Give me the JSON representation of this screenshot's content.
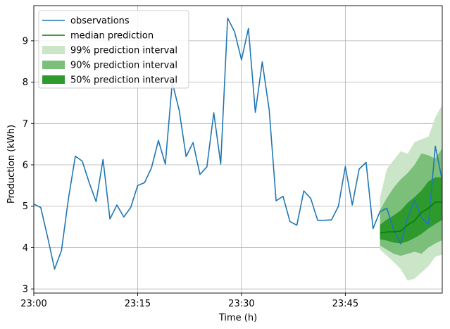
{
  "chart_data": {
    "type": "line",
    "xlabel": "Time (h)",
    "ylabel": "Production (kWh)",
    "x_unit": "minutes after 23:00",
    "xlim": [
      0,
      59
    ],
    "ylim": [
      2.9,
      9.85
    ],
    "x_ticks": [
      {
        "value": 0,
        "label": "23:00"
      },
      {
        "value": 15,
        "label": "23:15"
      },
      {
        "value": 30,
        "label": "23:30"
      },
      {
        "value": 45,
        "label": "23:45"
      }
    ],
    "y_ticks": [
      3,
      4,
      5,
      6,
      7,
      8,
      9
    ],
    "grid": true,
    "legend_position": "top-left",
    "colors": {
      "observations": "#1f77b4",
      "median": "#008000",
      "band99": "#cbe5c8",
      "band90": "#7bbf7a",
      "band50": "#2e9a2e"
    },
    "legend": [
      {
        "label": "observations",
        "kind": "line",
        "color_key": "observations"
      },
      {
        "label": "median prediction",
        "kind": "line",
        "color_key": "median"
      },
      {
        "label": "99% prediction interval",
        "kind": "patch",
        "color_key": "band99"
      },
      {
        "label": "90% prediction interval",
        "kind": "patch",
        "color_key": "band90"
      },
      {
        "label": "50% prediction interval",
        "kind": "patch",
        "color_key": "band50"
      }
    ],
    "observations": {
      "x": [
        0,
        1,
        2,
        3,
        4,
        5,
        6,
        7,
        8,
        9,
        10,
        11,
        12,
        13,
        14,
        15,
        16,
        17,
        18,
        19,
        20,
        21,
        22,
        23,
        24,
        25,
        26,
        27,
        28,
        29,
        30,
        31,
        32,
        33,
        34,
        35,
        36,
        37,
        38,
        39,
        40,
        41,
        42,
        43,
        44,
        45,
        46,
        47,
        48,
        49,
        50,
        51,
        52,
        53,
        54,
        55,
        56,
        57,
        58,
        59
      ],
      "y": [
        5.05,
        4.97,
        4.25,
        3.48,
        3.93,
        5.18,
        6.21,
        6.09,
        5.57,
        5.11,
        6.13,
        4.69,
        5.03,
        4.74,
        4.97,
        5.5,
        5.57,
        5.93,
        6.59,
        6.02,
        8.0,
        7.32,
        6.2,
        6.54,
        5.77,
        5.95,
        7.26,
        6.02,
        9.55,
        9.22,
        8.54,
        9.3,
        7.27,
        8.49,
        7.33,
        5.13,
        5.24,
        4.63,
        4.54,
        5.37,
        5.19,
        4.66,
        4.66,
        4.67,
        5.0,
        5.96,
        5.03,
        5.9,
        6.06,
        4.46,
        4.87,
        4.95,
        4.42,
        4.09,
        4.72,
        5.16,
        4.72,
        4.56,
        6.45,
        5.62
      ]
    },
    "prediction": {
      "x": [
        50,
        51,
        52,
        53,
        54,
        55,
        56,
        57,
        58,
        59
      ],
      "median": [
        4.35,
        4.38,
        4.38,
        4.4,
        4.55,
        4.65,
        4.85,
        4.95,
        5.1,
        5.1
      ],
      "band50_low": [
        4.2,
        4.17,
        4.12,
        4.1,
        4.15,
        4.23,
        4.33,
        4.46,
        4.57,
        4.67
      ],
      "band50_high": [
        4.55,
        4.68,
        4.78,
        4.9,
        5.08,
        5.22,
        5.38,
        5.6,
        5.7,
        5.7
      ],
      "band90_low": [
        4.05,
        3.95,
        3.85,
        3.8,
        3.85,
        3.9,
        3.85,
        4.0,
        4.1,
        4.18
      ],
      "band90_high": [
        4.9,
        5.2,
        5.45,
        5.65,
        5.8,
        6.0,
        6.28,
        6.23,
        6.15,
        6.4
      ],
      "band99_low": [
        3.95,
        3.8,
        3.65,
        3.48,
        3.2,
        3.25,
        3.4,
        3.55,
        3.78,
        3.83
      ],
      "band99_high": [
        5.2,
        5.9,
        6.12,
        6.33,
        6.27,
        6.55,
        6.62,
        6.68,
        7.15,
        7.45
      ]
    }
  }
}
